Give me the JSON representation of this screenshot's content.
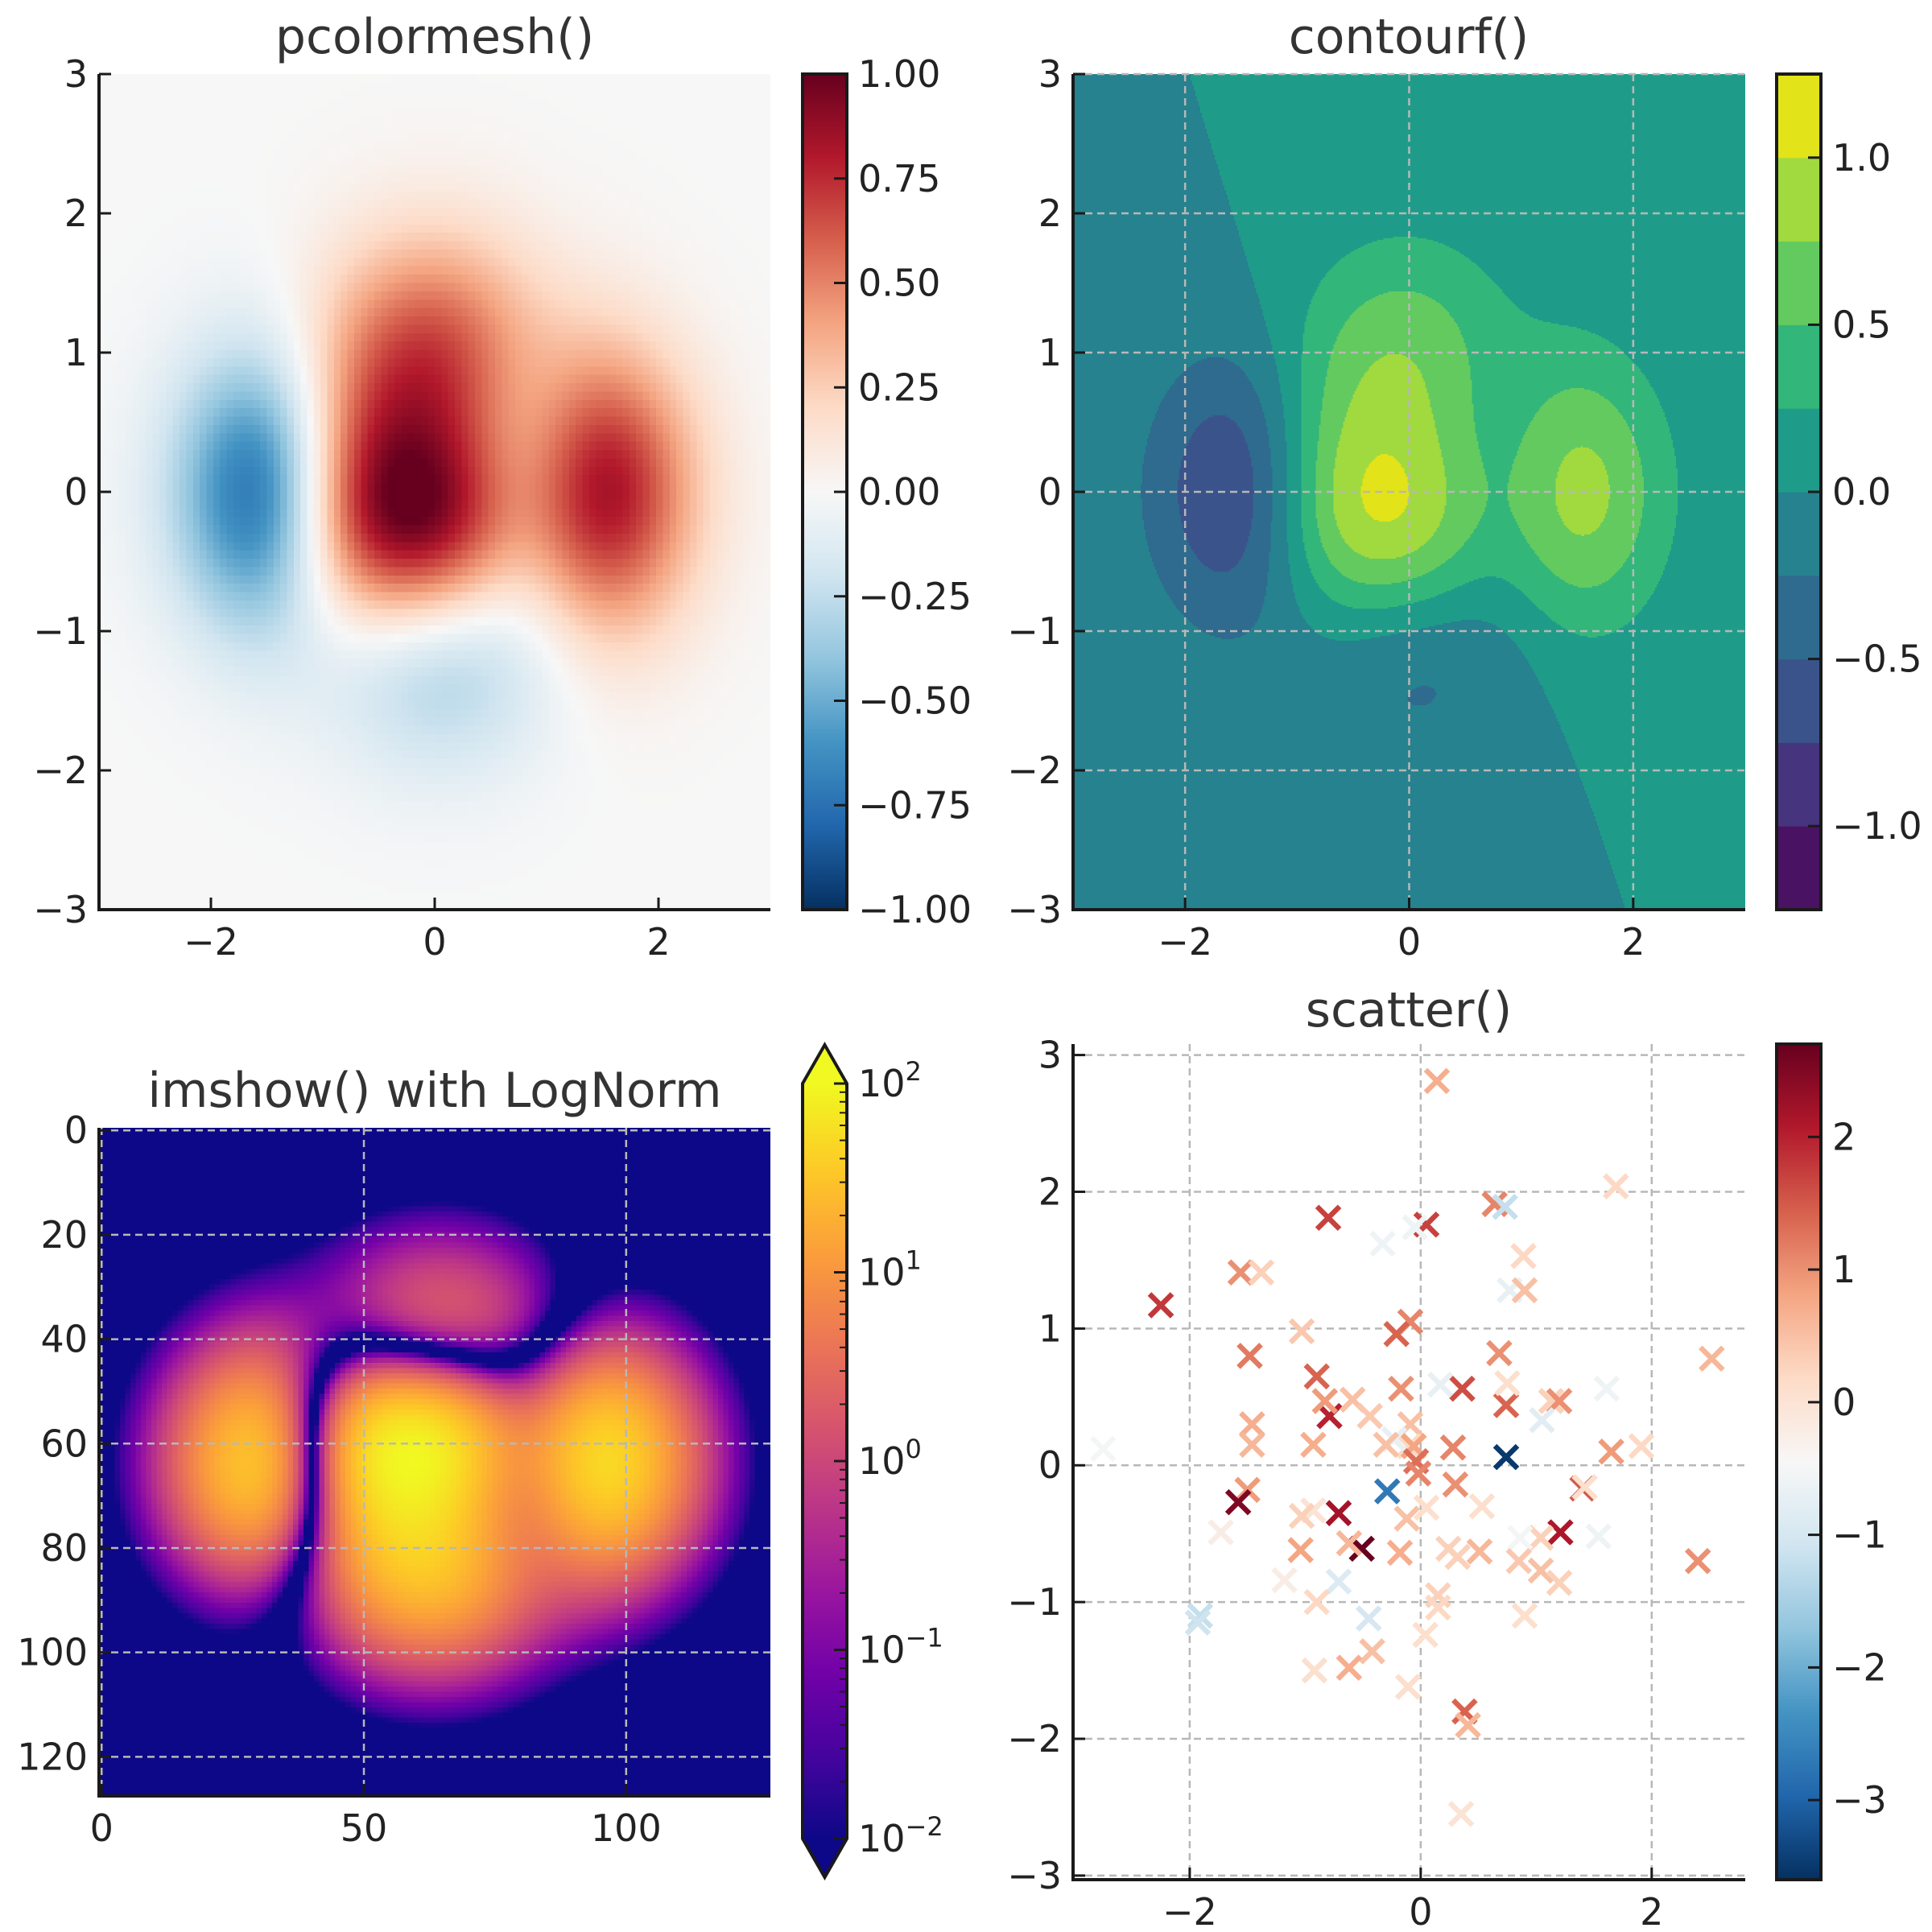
{
  "figure": {
    "background": "#ffffff",
    "text_color": "#222222",
    "spine_color": "#1a1a1a",
    "grid_color": "#b8b8b8"
  },
  "chart_data": [
    {
      "id": "pcolormesh",
      "type": "heatmap",
      "title": "pcolormesh()",
      "xlabel": "",
      "ylabel": "",
      "xlim": [
        -3,
        3
      ],
      "ylim": [
        -3,
        3
      ],
      "xticks": [
        -2,
        0,
        2
      ],
      "xtick_labels": [
        "−2",
        "0",
        "2"
      ],
      "yticks": [
        -3,
        -2,
        -1,
        0,
        1,
        2,
        3
      ],
      "ytick_labels": [
        "−3",
        "−2",
        "−1",
        "0",
        "1",
        "2",
        "3"
      ],
      "grid": false,
      "z_function": "(1 - x/2 + x^5 + y^3) * exp(-x^2 - y^2)",
      "grid_size": 100,
      "colormap": "RdBu_r",
      "vmin": -1,
      "vmax": 1,
      "colorbar": {
        "ticks": [
          -1,
          -0.75,
          -0.5,
          -0.25,
          0,
          0.25,
          0.5,
          0.75,
          1
        ],
        "tick_labels": [
          "−1.00",
          "−0.75",
          "−0.50",
          "−0.25",
          "0.00",
          "0.25",
          "0.50",
          "0.75",
          "1.00"
        ]
      }
    },
    {
      "id": "contourf",
      "type": "heatmap",
      "title": "contourf()",
      "xlabel": "",
      "ylabel": "",
      "xlim": [
        -3,
        3
      ],
      "ylim": [
        -3,
        3
      ],
      "xticks": [
        -2,
        0,
        2
      ],
      "xtick_labels": [
        "−2",
        "0",
        "2"
      ],
      "yticks": [
        -3,
        -2,
        -1,
        0,
        1,
        2,
        3
      ],
      "ytick_labels": [
        "−3",
        "−2",
        "−1",
        "0",
        "1",
        "2",
        "3"
      ],
      "grid": true,
      "z_function": "(1 - x/2 + x^5 + y^3) * exp(-x^2 - y^2)",
      "colormap": "viridis",
      "levels": [
        -1.25,
        -1.0,
        -0.75,
        -0.5,
        -0.25,
        0.0,
        0.25,
        0.5,
        0.75,
        1.0,
        1.25
      ],
      "band_colors": [
        "#4a1262",
        "#46357e",
        "#3b538b",
        "#2f6b8e",
        "#26828e",
        "#1f9c89",
        "#33b67a",
        "#63ca60",
        "#a0da3f",
        "#e2e318"
      ],
      "colorbar": {
        "ticks": [
          -1,
          -0.5,
          0,
          0.5,
          1
        ],
        "tick_labels": [
          "−1.0",
          "−0.5",
          "0.0",
          "0.5",
          "1.0"
        ]
      }
    },
    {
      "id": "imshow",
      "type": "heatmap",
      "title": "imshow() with LogNorm",
      "xlabel": "",
      "ylabel": "",
      "xlim": [
        -0.5,
        127.5
      ],
      "ylim": [
        127.5,
        -0.5
      ],
      "image_shape": [
        128,
        128
      ],
      "xticks": [
        0,
        50,
        100
      ],
      "xtick_labels": [
        "0",
        "50",
        "100"
      ],
      "yticks": [
        0,
        20,
        40,
        60,
        80,
        100,
        120
      ],
      "ytick_labels": [
        "0",
        "20",
        "40",
        "60",
        "80",
        "100",
        "120"
      ],
      "grid": true,
      "colormap": "plasma",
      "norm": "log",
      "vmin": 0.01,
      "vmax": 100,
      "colorbar": {
        "extend": "both",
        "ticks": [
          0.01,
          0.1,
          1,
          10,
          100
        ],
        "tick_base": "10",
        "tick_exponents": [
          "−2",
          "−1",
          "0",
          "1",
          "2"
        ]
      }
    },
    {
      "id": "scatter",
      "type": "scatter",
      "title": "scatter()",
      "xlabel": "",
      "ylabel": "",
      "marker": "x",
      "xlim": [
        -3.01,
        2.81
      ],
      "ylim": [
        -3.03,
        3.08
      ],
      "xticks": [
        -2,
        0,
        2
      ],
      "xtick_labels": [
        "−2",
        "0",
        "2"
      ],
      "yticks": [
        -3,
        -2,
        -1,
        0,
        1,
        2,
        3
      ],
      "ytick_labels": [
        "−3",
        "−2",
        "−1",
        "0",
        "1",
        "2",
        "3"
      ],
      "grid": true,
      "colormap": "RdBu_r",
      "vmin": -3.6,
      "vmax": 2.7,
      "colorbar": {
        "ticks": [
          -3,
          -2,
          -1,
          0,
          1,
          2
        ],
        "tick_labels": [
          "−3",
          "−2",
          "−1",
          "0",
          "1",
          "2"
        ]
      },
      "points": [
        [
          0.14,
          2.81,
          0.7
        ],
        [
          1.69,
          2.04,
          0.2
        ],
        [
          -0.8,
          1.81,
          1.7
        ],
        [
          0.05,
          1.76,
          1.7
        ],
        [
          -0.05,
          1.74,
          -0.6
        ],
        [
          -0.33,
          1.62,
          -0.6
        ],
        [
          0.64,
          1.91,
          1.1
        ],
        [
          0.73,
          1.89,
          -1.2
        ],
        [
          -2.25,
          1.17,
          1.8
        ],
        [
          -1.56,
          1.41,
          1.0
        ],
        [
          -1.38,
          1.41,
          0.3
        ],
        [
          0.89,
          1.53,
          0.2
        ],
        [
          0.77,
          1.28,
          -0.7
        ],
        [
          0.9,
          1.28,
          0.5
        ],
        [
          2.52,
          0.78,
          0.6
        ],
        [
          -1.48,
          0.8,
          1.2
        ],
        [
          -1.03,
          0.98,
          0.4
        ],
        [
          -0.09,
          1.05,
          1.1
        ],
        [
          -0.21,
          0.96,
          1.4
        ],
        [
          0.68,
          0.82,
          1.0
        ],
        [
          -0.9,
          0.65,
          1.4
        ],
        [
          0.36,
          0.56,
          1.6
        ],
        [
          -0.17,
          0.56,
          1.0
        ],
        [
          0.17,
          0.59,
          -0.7
        ],
        [
          0.74,
          0.44,
          1.4
        ],
        [
          0.75,
          0.6,
          0.1
        ],
        [
          1.13,
          0.47,
          0.3
        ],
        [
          1.2,
          0.47,
          1.0
        ],
        [
          1.05,
          0.33,
          -0.8
        ],
        [
          1.61,
          0.56,
          -0.6
        ],
        [
          -1.46,
          0.3,
          0.7
        ],
        [
          -1.46,
          0.15,
          0.6
        ],
        [
          -0.93,
          0.15,
          0.7
        ],
        [
          -0.79,
          0.36,
          2.0
        ],
        [
          -0.83,
          0.47,
          0.9
        ],
        [
          -0.59,
          0.48,
          0.5
        ],
        [
          -0.44,
          0.36,
          0.4
        ],
        [
          -0.09,
          0.3,
          0.5
        ],
        [
          -0.1,
          0.14,
          0.2
        ],
        [
          -0.23,
          0.19,
          -0.7
        ],
        [
          -0.3,
          0.15,
          0.5
        ],
        [
          -0.06,
          0.14,
          0.8
        ],
        [
          -0.04,
          0.03,
          1.3
        ],
        [
          0.28,
          0.13,
          1.1
        ],
        [
          0.74,
          0.06,
          -3.5
        ],
        [
          1.65,
          0.1,
          0.9
        ],
        [
          1.91,
          0.14,
          0.2
        ],
        [
          -2.75,
          0.12,
          -0.5
        ],
        [
          1.4,
          -0.17,
          1.5
        ],
        [
          1.42,
          -0.16,
          0.1
        ],
        [
          -1.5,
          -0.18,
          0.9
        ],
        [
          -1.58,
          -0.27,
          2.5
        ],
        [
          -0.71,
          -0.35,
          2.2
        ],
        [
          -0.29,
          -0.19,
          -2.7
        ],
        [
          -0.02,
          -0.06,
          1.1
        ],
        [
          0.3,
          -0.14,
          1.0
        ],
        [
          -0.51,
          -0.61,
          2.7
        ],
        [
          -0.62,
          -0.57,
          0.6
        ],
        [
          -0.12,
          -0.39,
          0.5
        ],
        [
          -0.93,
          -0.33,
          0.0
        ],
        [
          -1.03,
          -0.37,
          0.3
        ],
        [
          0.53,
          -0.3,
          0.1
        ],
        [
          0.05,
          -0.31,
          0.1
        ],
        [
          -1.73,
          -0.49,
          -0.2
        ],
        [
          1.21,
          -0.49,
          2.1
        ],
        [
          1.04,
          -0.53,
          0.3
        ],
        [
          0.86,
          -0.53,
          -0.5
        ],
        [
          1.54,
          -0.52,
          -0.6
        ],
        [
          2.4,
          -0.7,
          1.0
        ],
        [
          -1.04,
          -0.62,
          0.8
        ],
        [
          -0.18,
          -0.64,
          0.7
        ],
        [
          0.24,
          -0.61,
          0.3
        ],
        [
          0.32,
          -0.67,
          0.3
        ],
        [
          0.51,
          -0.63,
          0.6
        ],
        [
          0.85,
          -0.7,
          0.4
        ],
        [
          1.04,
          -0.77,
          0.5
        ],
        [
          1.2,
          -0.86,
          0.3
        ],
        [
          -0.71,
          -0.85,
          -0.9
        ],
        [
          -1.18,
          -0.84,
          -0.2
        ],
        [
          -0.9,
          -1.0,
          0.2
        ],
        [
          0.15,
          -0.95,
          0.3
        ],
        [
          0.15,
          -1.04,
          0.2
        ],
        [
          0.9,
          -1.1,
          0.1
        ],
        [
          -1.91,
          -1.1,
          -1.2
        ],
        [
          -1.93,
          -1.15,
          -1.1
        ],
        [
          -0.45,
          -1.12,
          -1.0
        ],
        [
          0.04,
          -1.24,
          0.1
        ],
        [
          -0.42,
          -1.36,
          0.5
        ],
        [
          -0.62,
          -1.48,
          0.7
        ],
        [
          -0.92,
          -1.5,
          0.1
        ],
        [
          -0.11,
          -1.62,
          0.1
        ],
        [
          0.38,
          -1.8,
          1.4
        ],
        [
          0.41,
          -1.9,
          0.6
        ],
        [
          0.35,
          -2.55,
          0.0
        ]
      ]
    }
  ]
}
